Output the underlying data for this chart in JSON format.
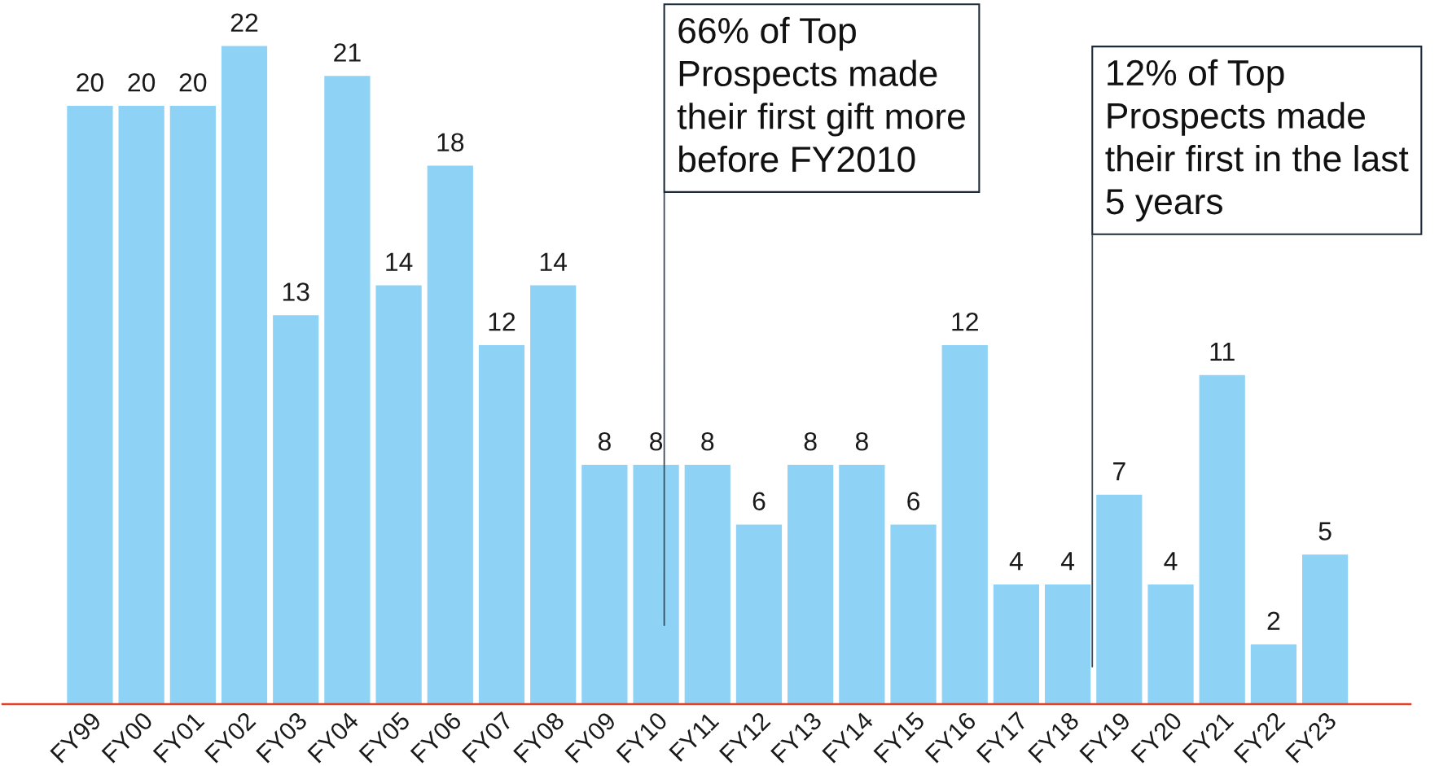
{
  "chart_data": {
    "type": "bar",
    "categories": [
      "FY99",
      "FY00",
      "FY01",
      "FY02",
      "FY03",
      "FY04",
      "FY05",
      "FY06",
      "FY07",
      "FY08",
      "FY09",
      "FY10",
      "FY11",
      "FY12",
      "FY13",
      "FY14",
      "FY15",
      "FY16",
      "FY17",
      "FY18",
      "FY19",
      "FY20",
      "FY21",
      "FY22",
      "FY23"
    ],
    "values": [
      20,
      20,
      20,
      22,
      13,
      21,
      14,
      18,
      12,
      14,
      8,
      8,
      8,
      6,
      8,
      8,
      6,
      12,
      4,
      4,
      7,
      4,
      11,
      2,
      5
    ],
    "color": "#8ed3f6",
    "data_labels": true,
    "annotations": [
      "66% of Top\nProspects made\ntheir first gift more\nbefore FY2010",
      "12% of Top\nProspects made\ntheir first in the last\n5 years"
    ]
  }
}
